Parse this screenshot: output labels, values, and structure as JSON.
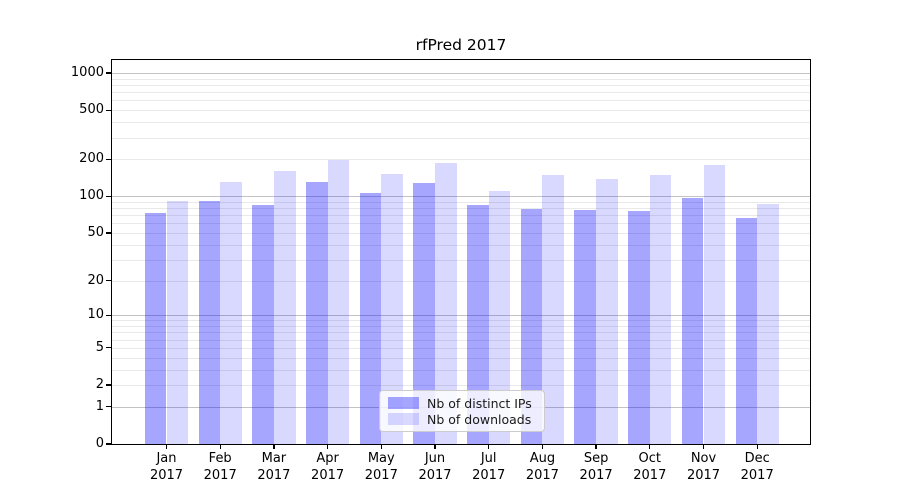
{
  "chart_data": {
    "type": "bar",
    "title": "rfPred 2017",
    "categories": [
      "Jan",
      "Feb",
      "Mar",
      "Apr",
      "May",
      "Jun",
      "Jul",
      "Aug",
      "Sep",
      "Oct",
      "Nov",
      "Dec"
    ],
    "x_year_label": "2017",
    "series": [
      {
        "name": "Nb of distinct IPs",
        "color": "rgba(0,0,255,0.35)",
        "values": [
          73,
          92,
          84,
          130,
          107,
          129,
          84,
          79,
          77,
          75,
          96,
          66
        ]
      },
      {
        "name": "Nb of downloads",
        "color": "rgba(0,0,255,0.15)",
        "values": [
          92,
          130,
          162,
          196,
          152,
          185,
          111,
          148,
          139,
          148,
          180,
          87
        ]
      }
    ],
    "y_ticks": [
      0,
      1,
      2,
      5,
      10,
      20,
      50,
      100,
      200,
      500,
      1000
    ],
    "y_scale": "log1p",
    "ylim": [
      0,
      1280
    ],
    "xlabel": "",
    "ylabel": "",
    "grid": true,
    "legend_position": "lower-center",
    "colors": {
      "bar_dark": "rgba(0,0,255,0.35)",
      "bar_light": "rgba(0,0,255,0.15)",
      "major_grid": "#c3c3c3",
      "minor_grid": "#e9e9e9",
      "spine": "#000000",
      "text": "#000000"
    }
  }
}
